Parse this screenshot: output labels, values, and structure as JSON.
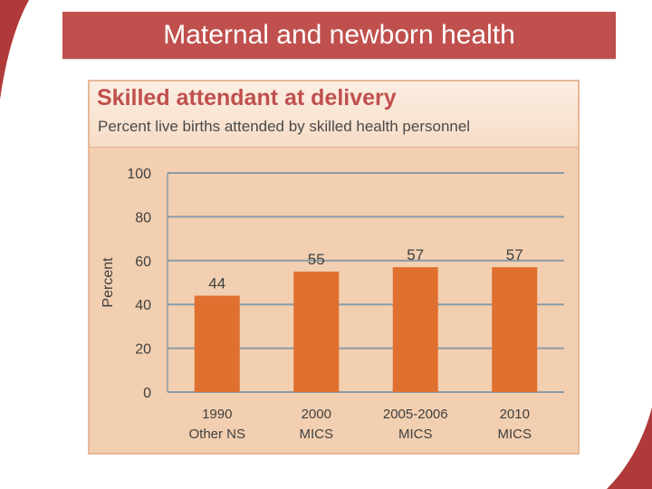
{
  "slide": {
    "title": "Maternal and newborn health"
  },
  "chart_data": {
    "type": "bar",
    "title": "Skilled attendant at delivery",
    "subtitle": "Percent live births attended by skilled health personnel",
    "ylabel": "Percent",
    "xlabel": "",
    "ylim": [
      0,
      100
    ],
    "yticks": [
      0,
      20,
      40,
      60,
      80,
      100
    ],
    "grid": true,
    "categories": [
      [
        "1990",
        "Other NS"
      ],
      [
        "2000",
        "MICS"
      ],
      [
        "2005-2006",
        "MICS"
      ],
      [
        "2010",
        "MICS"
      ]
    ],
    "values": [
      44,
      55,
      57,
      57
    ],
    "colors": {
      "bar": "#e07030",
      "grid": "#8a9aa6",
      "text": "#404040",
      "plot_bg": "#f2cfb0"
    }
  }
}
